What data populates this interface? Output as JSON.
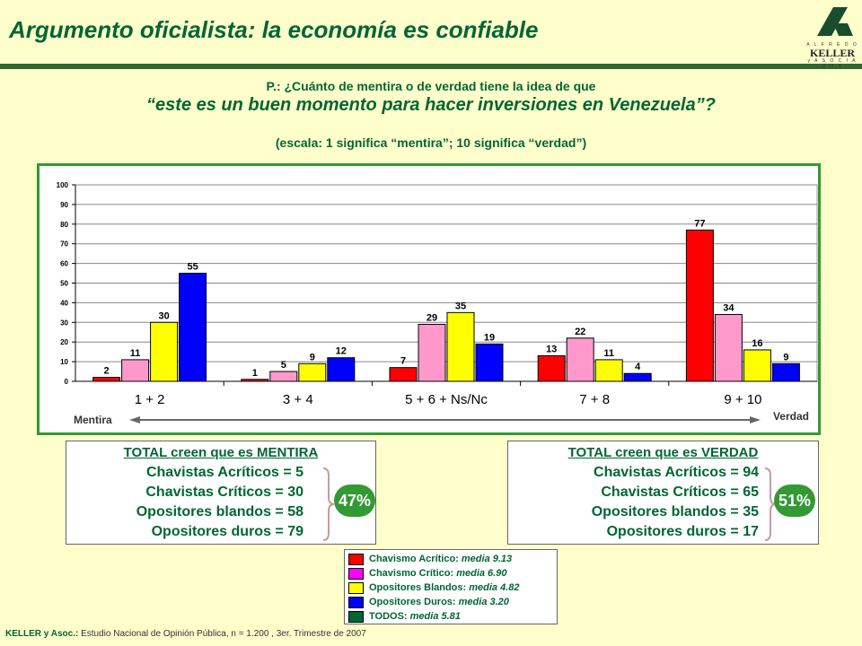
{
  "title": "Argumento oficialista: la economía es confiable",
  "logo": {
    "top": "A L F R E D O",
    "main": "KELLER",
    "bottom": "y  A S O C I A D O S"
  },
  "question": {
    "line1": "P.: ¿Cuánto de mentira o de verdad tiene la idea de que",
    "line2": "“este es un buen momento para hacer inversiones en Venezuela”?",
    "line3": "(escala: 1 significa “mentira”; 10 significa “verdad”)"
  },
  "chart_data": {
    "type": "bar",
    "categories": [
      "1 + 2",
      "3 + 4",
      "5 + 6 + Ns/Nc",
      "7 + 8",
      "9 + 10"
    ],
    "series": [
      {
        "name": "Chavismo Acrítico",
        "color": "#ff0000",
        "values": [
          2,
          1,
          7,
          13,
          77
        ]
      },
      {
        "name": "Chavismo Crítico",
        "color": "#ff99cc",
        "values": [
          11,
          5,
          29,
          22,
          34
        ]
      },
      {
        "name": "Opositores Blandos",
        "color": "#ffff00",
        "values": [
          30,
          9,
          35,
          11,
          16
        ]
      },
      {
        "name": "Opositores Duros",
        "color": "#0000ff",
        "values": [
          55,
          12,
          19,
          4,
          9
        ]
      }
    ],
    "ylim": [
      0,
      100
    ],
    "yticks": [
      0,
      10,
      20,
      30,
      40,
      50,
      60,
      70,
      80,
      90,
      100
    ],
    "grid": true,
    "axis_left_label": "Mentira",
    "axis_right_label": "Verdad"
  },
  "mentira_box": {
    "header": "TOTAL creen que es MENTIRA",
    "lines": [
      "Chavistas Acríticos = 5",
      "Chavistas Críticos = 30",
      "Opositores blandos = 58",
      "Opositores duros = 79"
    ],
    "percent": "47%"
  },
  "verdad_box": {
    "header": "TOTAL creen que es VERDAD",
    "lines": [
      "Chavistas Acríticos = 94",
      "Chavistas Críticos = 65",
      "Opositores blandos = 35",
      "Opositores duros = 17"
    ],
    "percent": "51%"
  },
  "legend": [
    {
      "label": "Chavismo Acrítico:",
      "mean": "media 9.13",
      "color": "#ff0000"
    },
    {
      "label": "Chavismo Crítico:",
      "mean": "media 6.90",
      "color": "#ff00ff"
    },
    {
      "label": "Opositores Blandos:",
      "mean": "media 4.82",
      "color": "#ffff00"
    },
    {
      "label": "Opositores Duros:",
      "mean": "media 3.20",
      "color": "#0000ff"
    },
    {
      "label": "TODOS:",
      "mean": "media 5.81",
      "color": "#006633"
    }
  ],
  "footer": {
    "source_bold": "KELLER y Asoc.:",
    "source_text": " Estudio Nacional de Opinión Pública, n = 1.200 , 3er. Trimestre de 2007"
  }
}
